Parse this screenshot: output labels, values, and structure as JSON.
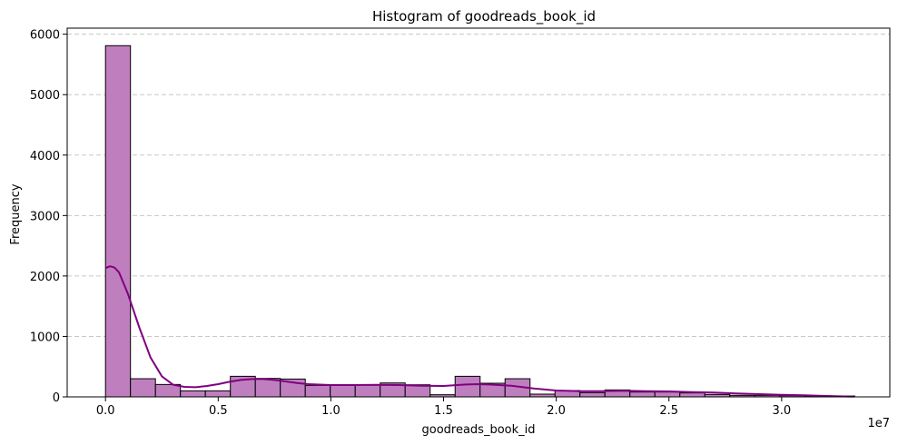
{
  "chart_data": {
    "type": "bar",
    "title": "Histogram of goodreads_book_id",
    "xlabel": "goodreads_book_id",
    "ylabel": "Frequency",
    "x_scale_label": "1e7",
    "bin_start": 1,
    "bin_width": 1108000,
    "counts": [
      5810,
      300,
      205,
      100,
      100,
      340,
      305,
      295,
      190,
      195,
      195,
      230,
      200,
      35,
      340,
      225,
      300,
      45,
      105,
      70,
      115,
      80,
      80,
      65,
      40,
      25,
      25,
      20,
      15,
      15
    ],
    "kde": {
      "x": [
        0,
        0.02,
        0.04,
        0.06,
        0.1,
        0.15,
        0.2,
        0.25,
        0.3,
        0.35,
        0.4,
        0.45,
        0.5,
        0.55,
        0.6,
        0.65,
        0.7,
        0.75,
        0.8,
        0.85,
        0.9,
        1.0,
        1.1,
        1.2,
        1.3,
        1.4,
        1.5,
        1.6,
        1.65,
        1.7,
        1.8,
        1.9,
        2.0,
        2.1,
        2.2,
        2.3,
        2.4,
        2.5,
        2.6,
        2.7,
        2.8,
        2.9,
        3.0,
        3.1,
        3.2,
        3.32
      ],
      "y": [
        2130,
        2160,
        2140,
        2060,
        1700,
        1150,
        650,
        340,
        200,
        165,
        160,
        180,
        210,
        250,
        280,
        295,
        295,
        280,
        255,
        230,
        210,
        195,
        195,
        200,
        195,
        185,
        180,
        205,
        210,
        205,
        185,
        140,
        105,
        95,
        95,
        100,
        95,
        90,
        80,
        70,
        55,
        45,
        35,
        25,
        15,
        5
      ]
    },
    "xlim": [
      -0.17,
      3.48
    ],
    "ylim": [
      0,
      6100
    ],
    "xticks": [
      0,
      0.5,
      1.0,
      1.5,
      2.0,
      2.5,
      3.0
    ],
    "xtick_labels": [
      "0.0",
      "0.5",
      "1.0",
      "1.5",
      "2.0",
      "2.5",
      "3.0"
    ],
    "yticks": [
      0,
      1000,
      2000,
      3000,
      4000,
      5000,
      6000
    ],
    "ytick_labels": [
      "0",
      "1000",
      "2000",
      "3000",
      "4000",
      "5000",
      "6000"
    ],
    "grid": "y-dashed",
    "colors": {
      "bar_fill": "#bf7fbf",
      "bar_edge": "#000000",
      "kde_line": "#800080",
      "grid": "#c8c8c8"
    }
  }
}
